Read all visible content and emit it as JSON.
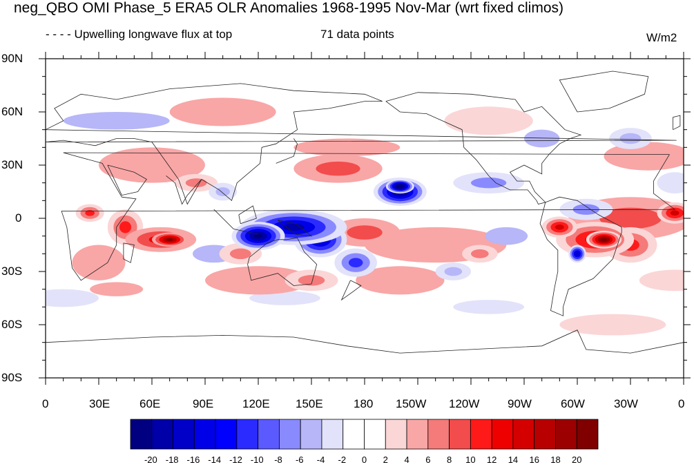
{
  "title": "neg_QBO OMI Phase_5 ERA5 OLR Anomalies 1968-1995 Nov-Mar (wrt fixed climos)",
  "subtitle_left": "- - - - Upwelling longwave flux at top",
  "subtitle_center": "71 data points",
  "units": "W/m2",
  "lat_labels": [
    "90N",
    "60N",
    "30N",
    "0",
    "30S",
    "60S",
    "90S"
  ],
  "lon_labels": [
    "0",
    "30E",
    "60E",
    "90E",
    "120E",
    "150E",
    "180",
    "150W",
    "120W",
    "90W",
    "60W",
    "30W",
    "0"
  ],
  "colorbar": {
    "labels": [
      "-20",
      "-18",
      "-16",
      "-14",
      "-12",
      "-10",
      "-8",
      "-6",
      "-4",
      "-2",
      "0",
      "2",
      "4",
      "6",
      "8",
      "10",
      "12",
      "14",
      "16",
      "18",
      "20"
    ],
    "colors": [
      "#000080",
      "#0000a8",
      "#0000c8",
      "#0000e8",
      "#0000ff",
      "#2b2bff",
      "#5a5aff",
      "#8a8aff",
      "#b6b6f8",
      "#e2e2fa",
      "#ffffff",
      "#ffffff",
      "#fbd6d6",
      "#f9a6a6",
      "#f57a7a",
      "#f24c4c",
      "#ff1a1a",
      "#ee0000",
      "#d40000",
      "#b80000",
      "#9c0000",
      "#800000"
    ]
  },
  "map_features": {
    "strong_positive_regions": [
      "Indian Ocean south of equator",
      "South America / Brazil",
      "Atlantic near equator"
    ],
    "strong_negative_regions": [
      "Maritime Continent / western Pacific",
      "central Pacific north of equator",
      "southwest Pacific"
    ],
    "coastlines": "continent outlines"
  }
}
